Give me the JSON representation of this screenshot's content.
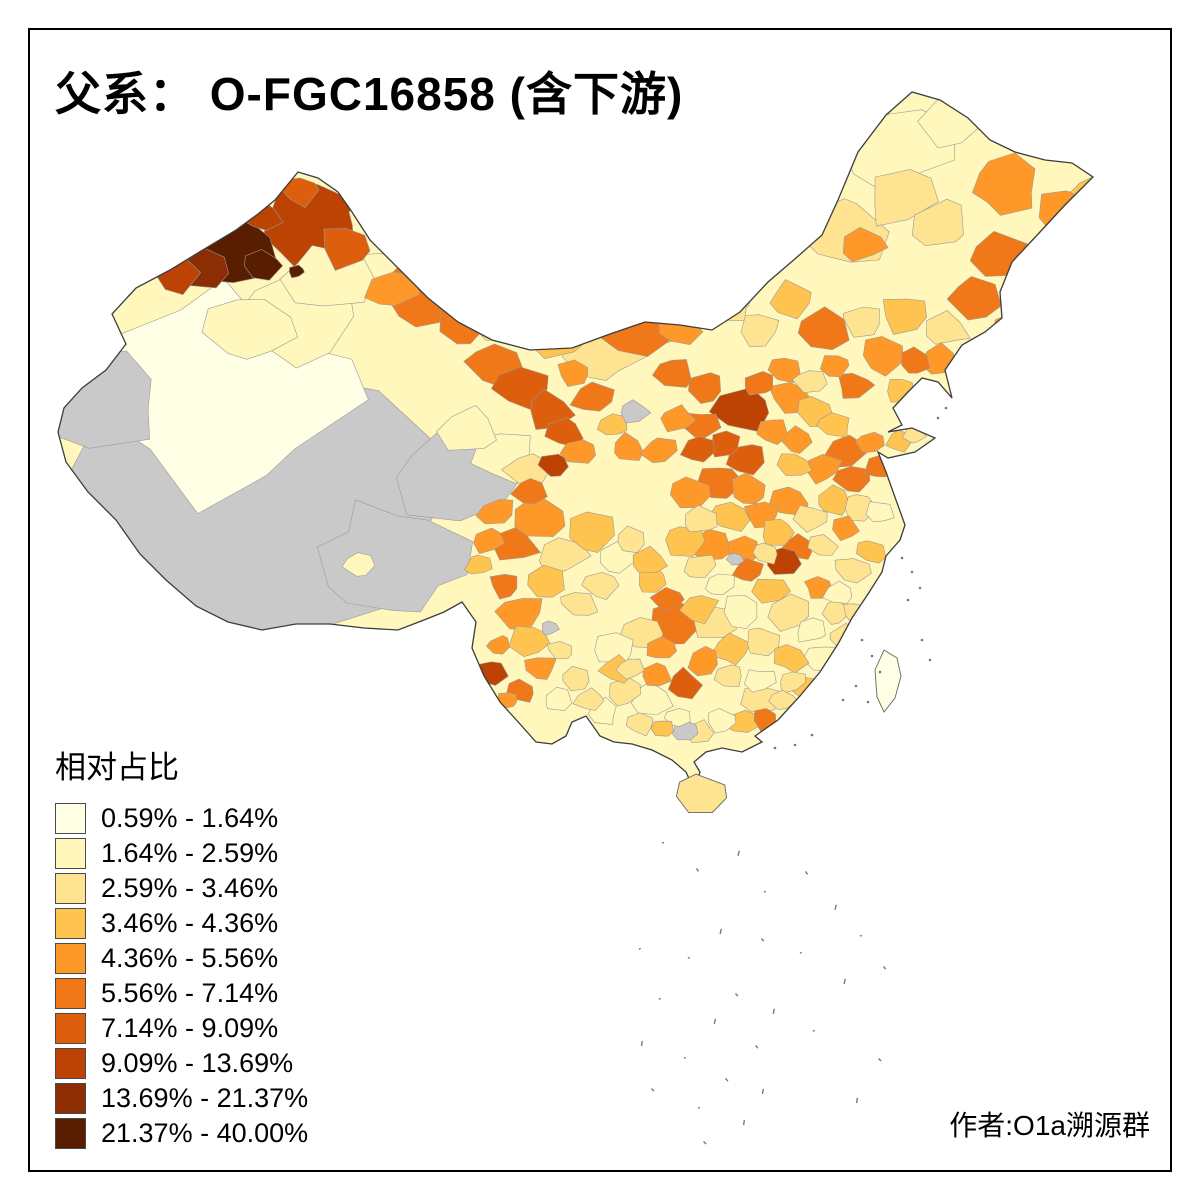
{
  "title": "父系： O-FGC16858 (含下游)",
  "legend": {
    "title": "相对占比",
    "classes": [
      {
        "label": "0.59% - 1.64%",
        "color": "#FFFFE5"
      },
      {
        "label": "1.64% - 2.59%",
        "color": "#FFF7BC"
      },
      {
        "label": "2.59% - 3.46%",
        "color": "#FEE391"
      },
      {
        "label": "3.46% - 4.36%",
        "color": "#FEC44F"
      },
      {
        "label": "4.36% - 5.56%",
        "color": "#FE9929"
      },
      {
        "label": "5.56% - 7.14%",
        "color": "#F07818"
      },
      {
        "label": "7.14% - 9.09%",
        "color": "#DD5E0D"
      },
      {
        "label": "9.09% - 13.69%",
        "color": "#BC4304"
      },
      {
        "label": "13.69% - 21.37%",
        "color": "#8C2D04"
      },
      {
        "label": "21.37% - 40.00%",
        "color": "#591E00"
      }
    ],
    "no_data_color": "#C9C9C9"
  },
  "map": {
    "region": "China",
    "type": "choropleth",
    "border_color": "#3C3C3C",
    "base_fill": "#FFF7BC"
  },
  "author": "作者:O1a溯源群"
}
